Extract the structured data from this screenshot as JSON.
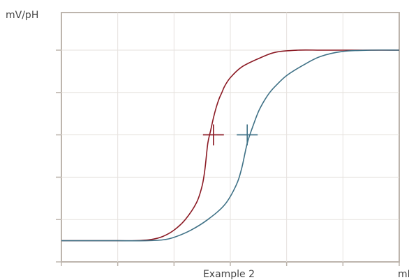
{
  "chart_data": {
    "type": "line",
    "title": "",
    "xlabel": "mL",
    "ylabel": "mV/pH",
    "annotations": [
      "Example 2"
    ],
    "grid": true,
    "legend": "none",
    "x_range": [
      0,
      6
    ],
    "y_range": [
      0,
      5
    ],
    "x_ticks": [
      0,
      1,
      2,
      3,
      4,
      5,
      6
    ],
    "y_ticks": [
      0,
      1,
      2,
      3,
      4,
      5
    ],
    "series": [
      {
        "color": "#8b1a24",
        "x": [
          0.0,
          0.5,
          1.0,
          1.3,
          1.6,
          1.8,
          2.0,
          2.2,
          2.4,
          2.5,
          2.55,
          2.6,
          2.65,
          2.7,
          2.75,
          2.8,
          2.85,
          2.9,
          3.0,
          3.2,
          3.5,
          3.8,
          4.2,
          4.6,
          5.0,
          5.5,
          6.0
        ],
        "y": [
          0.5,
          0.5,
          0.5,
          0.5,
          0.53,
          0.6,
          0.75,
          1.0,
          1.4,
          1.8,
          2.2,
          2.8,
          3.1,
          3.4,
          3.65,
          3.85,
          4.0,
          4.15,
          4.35,
          4.6,
          4.8,
          4.95,
          5.0,
          5.0,
          5.0,
          5.0,
          5.0
        ]
      },
      {
        "color": "#3f7186",
        "x": [
          0.0,
          0.5,
          1.0,
          1.5,
          1.8,
          2.0,
          2.3,
          2.6,
          2.9,
          3.1,
          3.2,
          3.3,
          3.4,
          3.5,
          3.6,
          3.7,
          3.8,
          4.0,
          4.3,
          4.6,
          5.0,
          5.5,
          6.0
        ],
        "y": [
          0.5,
          0.5,
          0.5,
          0.5,
          0.52,
          0.58,
          0.75,
          1.0,
          1.35,
          1.8,
          2.2,
          2.8,
          3.2,
          3.55,
          3.8,
          4.0,
          4.15,
          4.4,
          4.65,
          4.85,
          4.97,
          5.0,
          5.0
        ]
      }
    ],
    "equivalence_points": [
      {
        "color": "#8b1a24",
        "x": 2.7,
        "y": 3.0
      },
      {
        "color": "#3f7186",
        "x": 3.3,
        "y": 3.0
      }
    ]
  }
}
